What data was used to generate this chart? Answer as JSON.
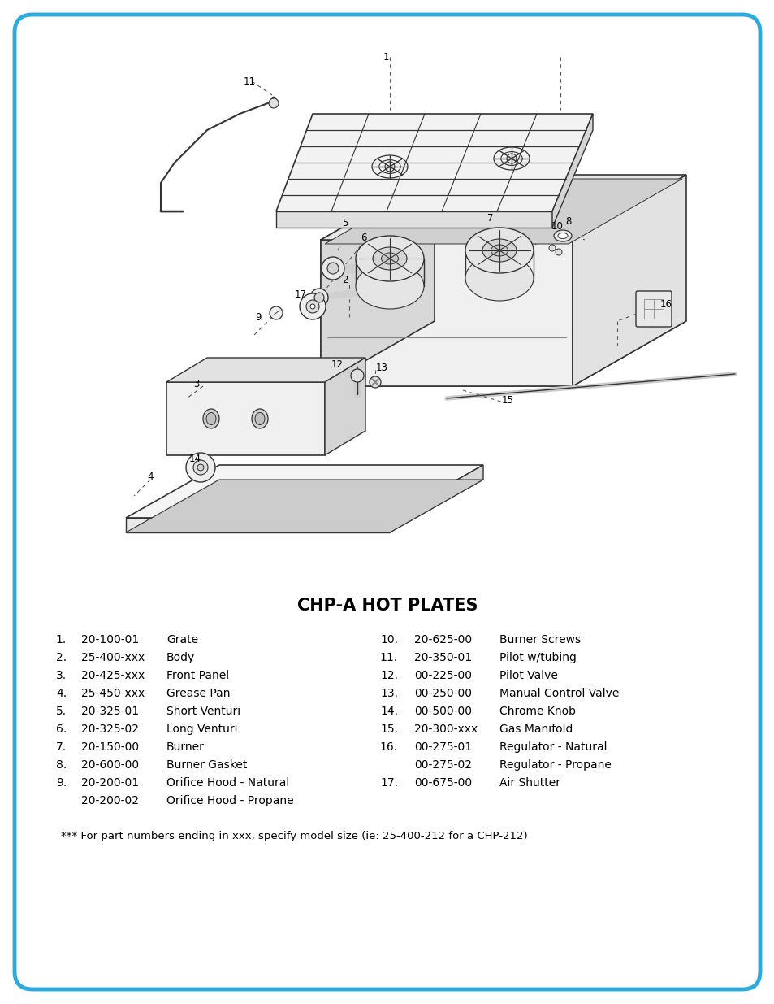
{
  "title": "CHP-A HOT PLATES",
  "background_color": "#ffffff",
  "border_color": "#29ABE2",
  "border_linewidth": 3.5,
  "title_fontsize": 15,
  "title_fontweight": "bold",
  "parts_left": [
    {
      "num": "1.",
      "part": "20-100-01",
      "desc": "Grate"
    },
    {
      "num": "2.",
      "part": "25-400-xxx",
      "desc": "Body"
    },
    {
      "num": "3.",
      "part": "20-425-xxx",
      "desc": "Front Panel"
    },
    {
      "num": "4.",
      "part": "25-450-xxx",
      "desc": "Grease Pan"
    },
    {
      "num": "5.",
      "part": "20-325-01",
      "desc": "Short Venturi"
    },
    {
      "num": "6.",
      "part": "20-325-02",
      "desc": "Long Venturi"
    },
    {
      "num": "7.",
      "part": "20-150-00",
      "desc": "Burner"
    },
    {
      "num": "8.",
      "part": "20-600-00",
      "desc": "Burner Gasket"
    },
    {
      "num": "9.",
      "part": "20-200-01",
      "desc": "Orifice Hood - Natural"
    },
    {
      "num": "",
      "part": "20-200-02",
      "desc": "Orifice Hood - Propane"
    }
  ],
  "parts_right": [
    {
      "num": "10.",
      "part": "20-625-00",
      "desc": "Burner Screws"
    },
    {
      "num": "11.",
      "part": "20-350-01",
      "desc": "Pilot w/tubing"
    },
    {
      "num": "12.",
      "part": "00-225-00",
      "desc": "Pilot Valve"
    },
    {
      "num": "13.",
      "part": "00-250-00",
      "desc": "Manual Control Valve"
    },
    {
      "num": "14.",
      "part": "00-500-00",
      "desc": "Chrome Knob"
    },
    {
      "num": "15.",
      "part": "20-300-xxx",
      "desc": "Gas Manifold"
    },
    {
      "num": "16.",
      "part": "00-275-01",
      "desc": "Regulator - Natural"
    },
    {
      "num": "",
      "part": "00-275-02",
      "desc": "Regulator - Propane"
    },
    {
      "num": "17.",
      "part": "00-675-00",
      "desc": "Air Shutter"
    }
  ],
  "footnote": "*** For part numbers ending in xxx, specify model size (ie: 25-400-212 for a CHP-212)",
  "parts_fontsize": 10,
  "footnote_fontsize": 9.5,
  "line_color": "#333333",
  "dash_color": "#555555"
}
